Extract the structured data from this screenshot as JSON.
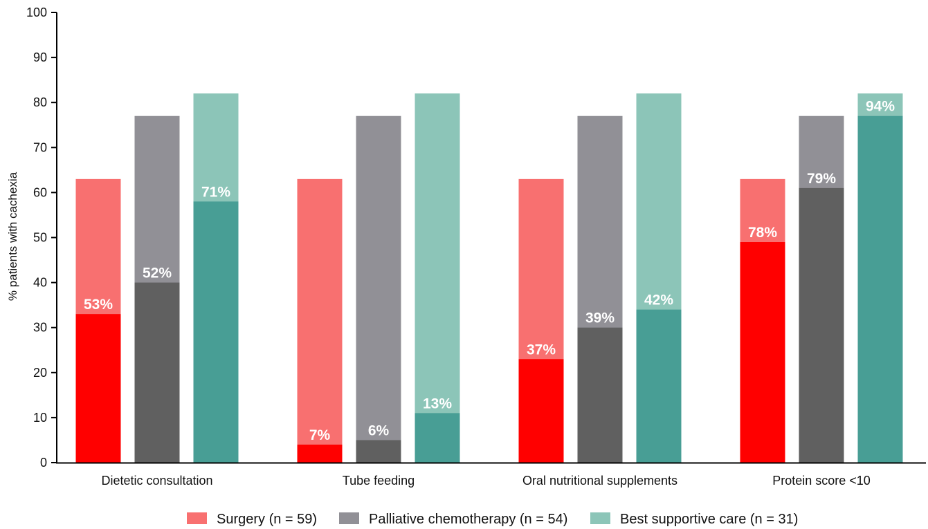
{
  "chart_data": {
    "type": "bar",
    "ylabel": "% patients with cachexia",
    "ylim": [
      0,
      100
    ],
    "yticks": [
      0,
      10,
      20,
      30,
      40,
      50,
      60,
      70,
      80,
      90,
      100
    ],
    "grid": false,
    "legend_position": "bottom",
    "categories": [
      "Dietetic consultation",
      "Tube feeding",
      "Oral nutritional supplements",
      "Protein score <10"
    ],
    "series": [
      {
        "name": "Surgery (n = 59)",
        "total": 63,
        "values": [
          33,
          4,
          23,
          49
        ],
        "labels": [
          "53%",
          "7%",
          "37%",
          "78%"
        ],
        "light_color": "#F87070",
        "dark_color": "#FF0000"
      },
      {
        "name": "Palliative chemotherapy (n = 54)",
        "total": 77,
        "values": [
          40,
          5,
          30,
          61
        ],
        "labels": [
          "52%",
          "6%",
          "39%",
          "79%"
        ],
        "light_color": "#919096",
        "dark_color": "#606060"
      },
      {
        "name": "Best supportive care (n = 31)",
        "total": 82,
        "values": [
          58,
          11,
          34,
          77
        ],
        "labels": [
          "71%",
          "13%",
          "42%",
          "94%"
        ],
        "light_color": "#8CC5B8",
        "dark_color": "#489E95"
      }
    ]
  }
}
